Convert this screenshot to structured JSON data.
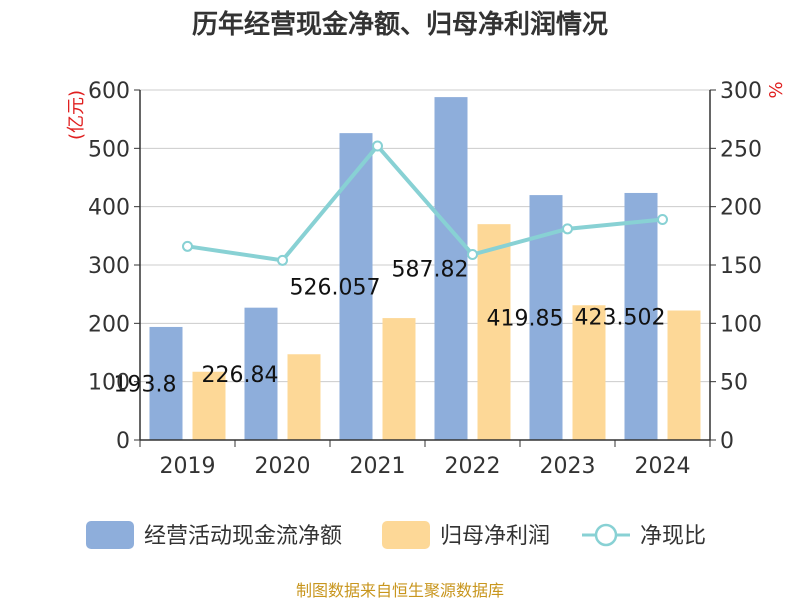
{
  "chart_data": {
    "type": "bar",
    "title": "历年经营现金净额、归母净利润情况",
    "categories": [
      "2019",
      "2020",
      "2021",
      "2022",
      "2023",
      "2024"
    ],
    "series": [
      {
        "name": "经营活动现金流净额",
        "kind": "bar",
        "axis": "left",
        "color": "#8eaedb",
        "values": [
          193.8,
          226.84,
          526.057,
          587.82,
          419.85,
          423.502
        ],
        "labels": [
          "193.8",
          "226.84",
          "526.057",
          "587.82",
          "419.85",
          "423.502"
        ]
      },
      {
        "name": "归母净利润",
        "kind": "bar",
        "axis": "left",
        "color": "#fdd897",
        "values": [
          117,
          147,
          209,
          370,
          231,
          222
        ]
      },
      {
        "name": "净现比",
        "kind": "line",
        "axis": "right",
        "color": "#88d1d4",
        "values": [
          166,
          154,
          252,
          159,
          181,
          189
        ]
      }
    ],
    "y_left": {
      "unit": "(亿元)",
      "min": 0,
      "max": 600,
      "ticks": [
        0,
        100,
        200,
        300,
        400,
        500,
        600
      ]
    },
    "y_right": {
      "unit": "%",
      "min": 0,
      "max": 300,
      "ticks": [
        0,
        50,
        100,
        150,
        200,
        250,
        300
      ]
    },
    "legend_position": "bottom",
    "grid": true
  },
  "source": "制图数据来自恒生聚源数据库"
}
